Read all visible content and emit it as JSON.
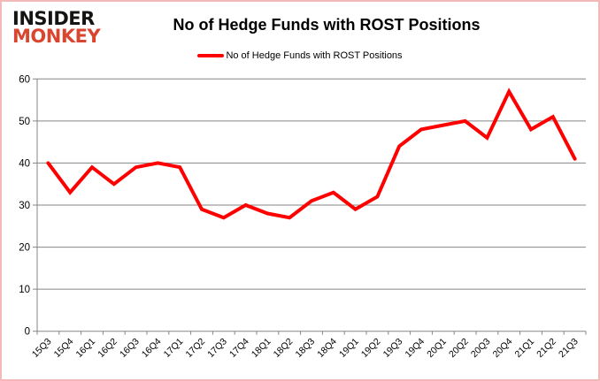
{
  "brand": {
    "line1": "INSIDER",
    "line2": "MONKEY"
  },
  "header": {
    "title": "No of Hedge Funds with ROST Positions"
  },
  "legend": {
    "label": "No of Hedge Funds with ROST Positions"
  },
  "colors": {
    "series": "#fe0000",
    "grid": "#858585",
    "axis": "#858585",
    "tick_text": "#000000",
    "brand_black": "#161412",
    "brand_red": "#d9452f",
    "border": "#f3b9b9"
  },
  "chart_data": {
    "type": "line",
    "title": "No of Hedge Funds with ROST Positions",
    "series_name": "No of Hedge Funds with ROST Positions",
    "categories": [
      "15Q3",
      "15Q4",
      "16Q1",
      "16Q2",
      "16Q3",
      "16Q4",
      "17Q1",
      "17Q2",
      "17Q3",
      "17Q4",
      "18Q1",
      "18Q2",
      "18Q3",
      "18Q4",
      "19Q1",
      "19Q2",
      "19Q3",
      "19Q4",
      "20Q1",
      "20Q2",
      "20Q3",
      "20Q4",
      "21Q1",
      "21Q2",
      "21Q3"
    ],
    "values": [
      40,
      33,
      39,
      35,
      39,
      40,
      39,
      29,
      27,
      30,
      28,
      27,
      31,
      33,
      29,
      32,
      44,
      48,
      49,
      50,
      46,
      57,
      48,
      51,
      41
    ],
    "xlabel": "",
    "ylabel": "",
    "ylim": [
      0,
      60
    ],
    "ytick_step": 10,
    "yticks": [
      0,
      10,
      20,
      30,
      40,
      50,
      60
    ],
    "grid": true,
    "legend_position": "top",
    "line_width": 4
  }
}
